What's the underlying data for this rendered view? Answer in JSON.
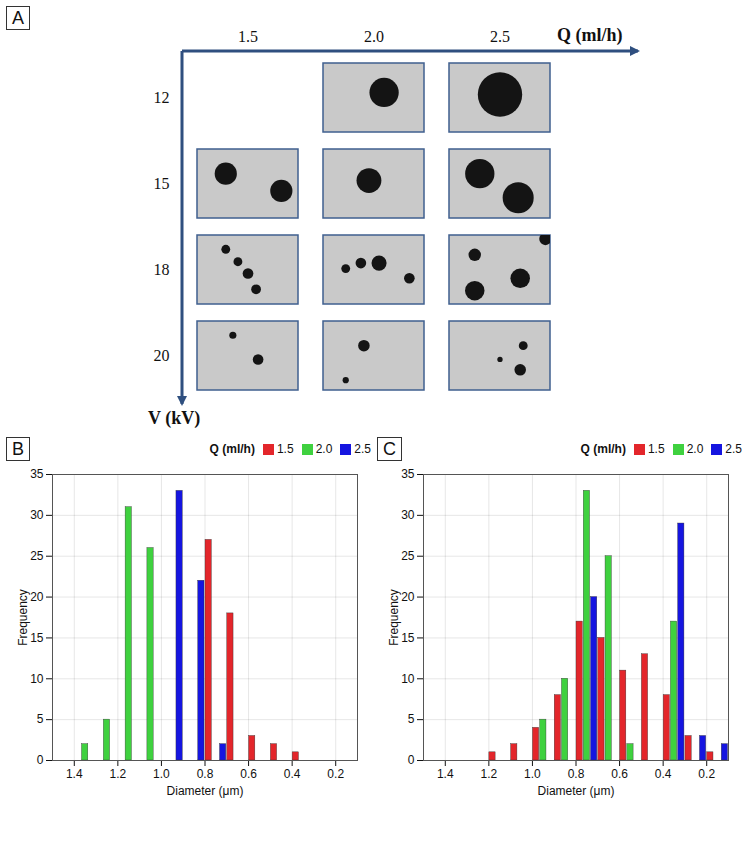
{
  "chart_data": [
    {
      "panel": "A",
      "type": "image_grid",
      "x_label": "Q (ml/h)",
      "y_label": "V (kV)",
      "x_categories": [
        "1.5",
        "2.0",
        "2.5"
      ],
      "y_categories": [
        "12",
        "15",
        "18",
        "20"
      ],
      "cells": [
        {
          "Q": "2.0",
          "V": "12",
          "particles": [
            {
              "x": 0.6,
              "y": 0.42,
              "d": 0.33
            }
          ]
        },
        {
          "Q": "2.5",
          "V": "12",
          "particles": [
            {
              "x": 0.5,
              "y": 0.45,
              "d": 0.5
            }
          ]
        },
        {
          "Q": "1.5",
          "V": "15",
          "particles": [
            {
              "x": 0.28,
              "y": 0.35,
              "d": 0.25
            },
            {
              "x": 0.83,
              "y": 0.6,
              "d": 0.25
            }
          ]
        },
        {
          "Q": "2.0",
          "V": "15",
          "particles": [
            {
              "x": 0.45,
              "y": 0.45,
              "d": 0.28
            }
          ]
        },
        {
          "Q": "2.5",
          "V": "15",
          "particles": [
            {
              "x": 0.3,
              "y": 0.35,
              "d": 0.33
            },
            {
              "x": 0.68,
              "y": 0.7,
              "d": 0.35
            }
          ]
        },
        {
          "Q": "1.5",
          "V": "18",
          "particles": [
            {
              "x": 0.28,
              "y": 0.2,
              "d": 0.1
            },
            {
              "x": 0.4,
              "y": 0.38,
              "d": 0.1
            },
            {
              "x": 0.5,
              "y": 0.55,
              "d": 0.12
            },
            {
              "x": 0.58,
              "y": 0.78,
              "d": 0.11
            }
          ]
        },
        {
          "Q": "2.0",
          "V": "18",
          "particles": [
            {
              "x": 0.22,
              "y": 0.48,
              "d": 0.1
            },
            {
              "x": 0.37,
              "y": 0.4,
              "d": 0.12
            },
            {
              "x": 0.55,
              "y": 0.4,
              "d": 0.17
            },
            {
              "x": 0.85,
              "y": 0.62,
              "d": 0.12
            }
          ]
        },
        {
          "Q": "2.5",
          "V": "18",
          "particles": [
            {
              "x": 0.25,
              "y": 0.28,
              "d": 0.14
            },
            {
              "x": 0.95,
              "y": 0.05,
              "d": 0.14
            },
            {
              "x": 0.25,
              "y": 0.8,
              "d": 0.22
            },
            {
              "x": 0.7,
              "y": 0.62,
              "d": 0.22
            }
          ]
        },
        {
          "Q": "1.5",
          "V": "20",
          "particles": [
            {
              "x": 0.35,
              "y": 0.2,
              "d": 0.08
            },
            {
              "x": 0.6,
              "y": 0.55,
              "d": 0.12
            }
          ]
        },
        {
          "Q": "2.0",
          "V": "20",
          "particles": [
            {
              "x": 0.4,
              "y": 0.35,
              "d": 0.13
            },
            {
              "x": 0.22,
              "y": 0.85,
              "d": 0.07
            }
          ]
        },
        {
          "Q": "2.5",
          "V": "20",
          "particles": [
            {
              "x": 0.5,
              "y": 0.55,
              "d": 0.06
            },
            {
              "x": 0.73,
              "y": 0.35,
              "d": 0.1
            },
            {
              "x": 0.7,
              "y": 0.7,
              "d": 0.13
            }
          ]
        }
      ]
    },
    {
      "panel": "B",
      "type": "histogram",
      "x_label": "Diameter (μm)",
      "y_label": "Frequency",
      "legend_title": "Q (ml/h)",
      "bins": [
        0.1,
        0.2,
        0.3,
        0.4,
        0.5,
        0.6,
        0.7,
        0.8,
        0.9,
        1.0,
        1.1,
        1.2,
        1.3,
        1.4,
        1.5
      ],
      "series": [
        {
          "name": "1.5",
          "color": "#e3262b",
          "values": [
            0,
            0,
            1,
            2,
            3,
            18,
            27,
            0,
            0,
            0,
            0,
            0,
            0,
            0
          ]
        },
        {
          "name": "2.0",
          "color": "#3fd13f",
          "values": [
            0,
            0,
            0,
            0,
            0,
            0,
            0,
            0,
            0,
            26,
            31,
            5,
            2,
            0
          ]
        },
        {
          "name": "2.5",
          "color": "#1515e0",
          "values": [
            0,
            0,
            0,
            0,
            0,
            0,
            2,
            22,
            33,
            0,
            0,
            0,
            0,
            0
          ]
        }
      ],
      "xlim": [
        1.5,
        0.1
      ],
      "ylim": [
        0,
        35
      ],
      "xticks": [
        1.4,
        1.2,
        {
          "value": 1,
          "label": "1.0"
        },
        0.8,
        0.6,
        0.4,
        0.2
      ],
      "yticks": [
        0,
        5,
        10,
        15,
        20,
        25,
        30,
        35
      ],
      "grid": true,
      "legend": "top-right"
    },
    {
      "panel": "C",
      "type": "histogram",
      "x_label": "Diameter (μm)",
      "y_label": "Frequency",
      "legend_title": "Q (ml/h)",
      "bins": [
        0.1,
        0.2,
        0.3,
        0.4,
        0.5,
        0.6,
        0.7,
        0.8,
        0.9,
        1.0,
        1.1,
        1.2,
        1.3,
        1.4,
        1.5
      ],
      "series": [
        {
          "name": "1.5",
          "color": "#e3262b",
          "values": [
            1,
            3,
            8,
            13,
            11,
            15,
            17,
            8,
            4,
            2,
            1,
            0,
            0,
            0
          ]
        },
        {
          "name": "2.0",
          "color": "#3fd13f",
          "values": [
            0,
            0,
            17,
            0,
            2,
            25,
            33,
            10,
            5,
            0,
            0,
            0,
            0,
            0
          ]
        },
        {
          "name": "2.5",
          "color": "#1515e0",
          "values": [
            2,
            3,
            29,
            0,
            0,
            0,
            20,
            0,
            0,
            0,
            0,
            0,
            0,
            0
          ]
        }
      ],
      "xlim": [
        1.5,
        0.1
      ],
      "ylim": [
        0,
        35
      ],
      "xticks": [
        1.4,
        1.2,
        {
          "value": 1,
          "label": "1.0"
        },
        0.8,
        0.6,
        0.4,
        0.2
      ],
      "yticks": [
        0,
        5,
        10,
        15,
        20,
        25,
        30,
        35
      ],
      "grid": true,
      "legend": "top-right"
    }
  ]
}
